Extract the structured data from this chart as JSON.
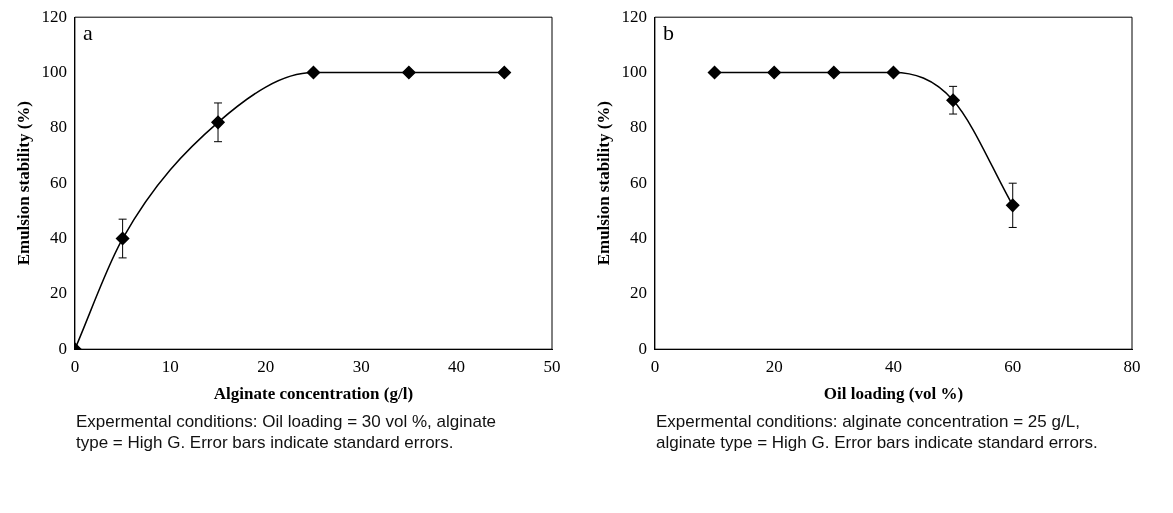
{
  "chart_data": [
    {
      "type": "line",
      "title": "a",
      "xlabel": "Alginate concentration (g/l)",
      "ylabel": "Emulsion stability (%)",
      "x": [
        0,
        5,
        15,
        25,
        35,
        45
      ],
      "series": [
        {
          "color": "#000000",
          "values": [
            0,
            40,
            82,
            100,
            100,
            100
          ],
          "errors": [
            null,
            7,
            7,
            null,
            null,
            null
          ]
        }
      ],
      "xlim": [
        0,
        50
      ],
      "xticks": [
        0,
        10,
        20,
        30,
        40,
        50
      ],
      "ylim": [
        0,
        120
      ],
      "yticks": [
        0,
        20,
        40,
        60,
        80,
        100,
        120
      ],
      "grid": false,
      "legend": false,
      "marker": "diamond",
      "line_style": "solid",
      "annotations": [
        "Expermental conditions: Oil loading = 30 vol %, alginate type = High G. Error bars indicate standard errors."
      ]
    },
    {
      "type": "line",
      "title": "b",
      "xlabel": "Oil loading (vol %)",
      "ylabel": "Emulsion stability (%)",
      "x": [
        10,
        20,
        30,
        40,
        50,
        60
      ],
      "series": [
        {
          "color": "#000000",
          "values": [
            100,
            100,
            100,
            100,
            90,
            52
          ],
          "errors": [
            null,
            null,
            null,
            null,
            5,
            8
          ]
        }
      ],
      "xlim": [
        0,
        80
      ],
      "xticks": [
        0,
        20,
        40,
        60,
        80
      ],
      "ylim": [
        0,
        120
      ],
      "yticks": [
        0,
        20,
        40,
        60,
        80,
        100,
        120
      ],
      "grid": false,
      "legend": false,
      "marker": "diamond",
      "line_style": "solid",
      "annotations": [
        "Expermental conditions: alginate concentration = 25 g/L, alginate type = High G. Error bars indicate standard errors."
      ]
    }
  ]
}
